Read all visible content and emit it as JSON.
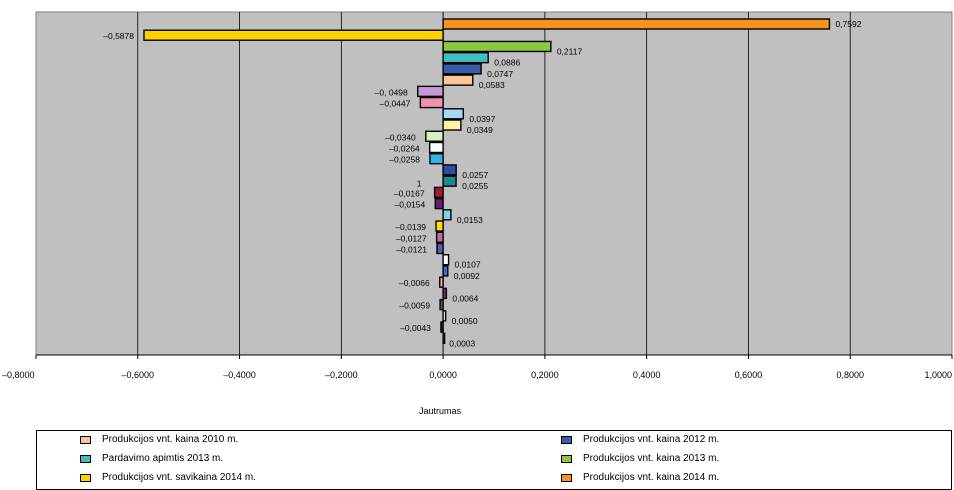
{
  "chart_data": {
    "type": "bar",
    "orientation": "horizontal",
    "xlabel": "Jautrumas",
    "xlim": [
      -0.8,
      1.0
    ],
    "x_ticks": [
      {
        "value": -0.8,
        "label": "–0,8000"
      },
      {
        "value": -0.6,
        "label": "–0,6000"
      },
      {
        "value": -0.4,
        "label": "–0,4000"
      },
      {
        "value": -0.2,
        "label": "–0,2000"
      },
      {
        "value": 0.0,
        "label": "0,0000"
      },
      {
        "value": 0.2,
        "label": "0,2000"
      },
      {
        "value": 0.4,
        "label": "0,4000"
      },
      {
        "value": 0.6,
        "label": "0,6000"
      },
      {
        "value": 0.8,
        "label": "0,8000"
      },
      {
        "value": 1.0,
        "label": "1,0000"
      }
    ],
    "grid": "vertical",
    "plot_background": "#c0c0c0",
    "bars": [
      {
        "value": 0.7592,
        "label": "0,7592",
        "color": "#f7941d"
      },
      {
        "value": -0.5878,
        "label": "–0,5878",
        "color": "#ffd100"
      },
      {
        "value": 0.2117,
        "label": "0,2117",
        "color": "#8dc63f"
      },
      {
        "value": 0.0886,
        "label": "0,0886",
        "color": "#3fbfbf"
      },
      {
        "value": 0.0747,
        "label": "0,0747",
        "color": "#3a5ba8"
      },
      {
        "value": 0.0583,
        "label": "0,0583",
        "color": "#fbc599"
      },
      {
        "value": -0.0498,
        "label": "–0, 0498",
        "color": "#c39bd3"
      },
      {
        "value": -0.0447,
        "label": "–0,0447",
        "color": "#f48fb1"
      },
      {
        "value": 0.0397,
        "label": "0,0397",
        "color": "#a9d4f5"
      },
      {
        "value": 0.0349,
        "label": "0,0349",
        "color": "#fff2a8"
      },
      {
        "value": -0.034,
        "label": "–0,0340",
        "color": "#d9f0c0"
      },
      {
        "value": -0.0264,
        "label": "–0,0264",
        "color": "#ffffff"
      },
      {
        "value": -0.0258,
        "label": "–0,0258",
        "color": "#2fb5e0"
      },
      {
        "value": 0.0257,
        "label": "0,0257",
        "color": "#2e4fa0"
      },
      {
        "value": 0.0255,
        "label": "0,0255",
        "color": "#1d8a8a"
      },
      {
        "value": -0.0167,
        "label": "–0,0167",
        "color": "#9c1f2e",
        "extra_label": "1"
      },
      {
        "value": -0.0154,
        "label": "–0,0154",
        "color": "#6a1b6e"
      },
      {
        "value": 0.0153,
        "label": "0,0153",
        "color": "#7fd6e0"
      },
      {
        "value": -0.0139,
        "label": "–0,0139",
        "color": "#ffe000"
      },
      {
        "value": -0.0127,
        "label": "–0,0127",
        "color": "#c06aa0"
      },
      {
        "value": -0.0121,
        "label": "–0,0121",
        "color": "#5a58b0"
      },
      {
        "value": 0.0107,
        "label": "0,0107",
        "color": "#ffffff"
      },
      {
        "value": 0.0092,
        "label": "0,0092",
        "color": "#3b6fd0"
      },
      {
        "value": -0.0066,
        "label": "–0,0066",
        "color": "#f9a8a0"
      },
      {
        "value": 0.0064,
        "label": "0,0064",
        "color": "#8a2b7a"
      },
      {
        "value": -0.0059,
        "label": "–0,0059",
        "color": "#556b2f"
      },
      {
        "value": 0.005,
        "label": "0,0050",
        "color": "#fff3c0"
      },
      {
        "value": -0.0043,
        "label": "–0,0043",
        "color": "#333333"
      },
      {
        "value": 0.0003,
        "label": "0,0003",
        "color": "#999999"
      }
    ],
    "legend": [
      {
        "label": "Produkcijos vnt. kaina 2010 m.",
        "color": "#fbc599"
      },
      {
        "label": "Produkcijos vnt. kaina 2012 m.",
        "color": "#3a5ba8"
      },
      {
        "label": "Pardavimo apimtis 2013 m.",
        "color": "#3fbfbf"
      },
      {
        "label": "Produkcijos vnt. kaina 2013 m.",
        "color": "#8dc63f"
      },
      {
        "label": "Produkcijos vnt. savikaina 2014 m.",
        "color": "#ffd100"
      },
      {
        "label": "Produkcijos vnt. kaina 2014 m.",
        "color": "#f7941d"
      }
    ]
  }
}
